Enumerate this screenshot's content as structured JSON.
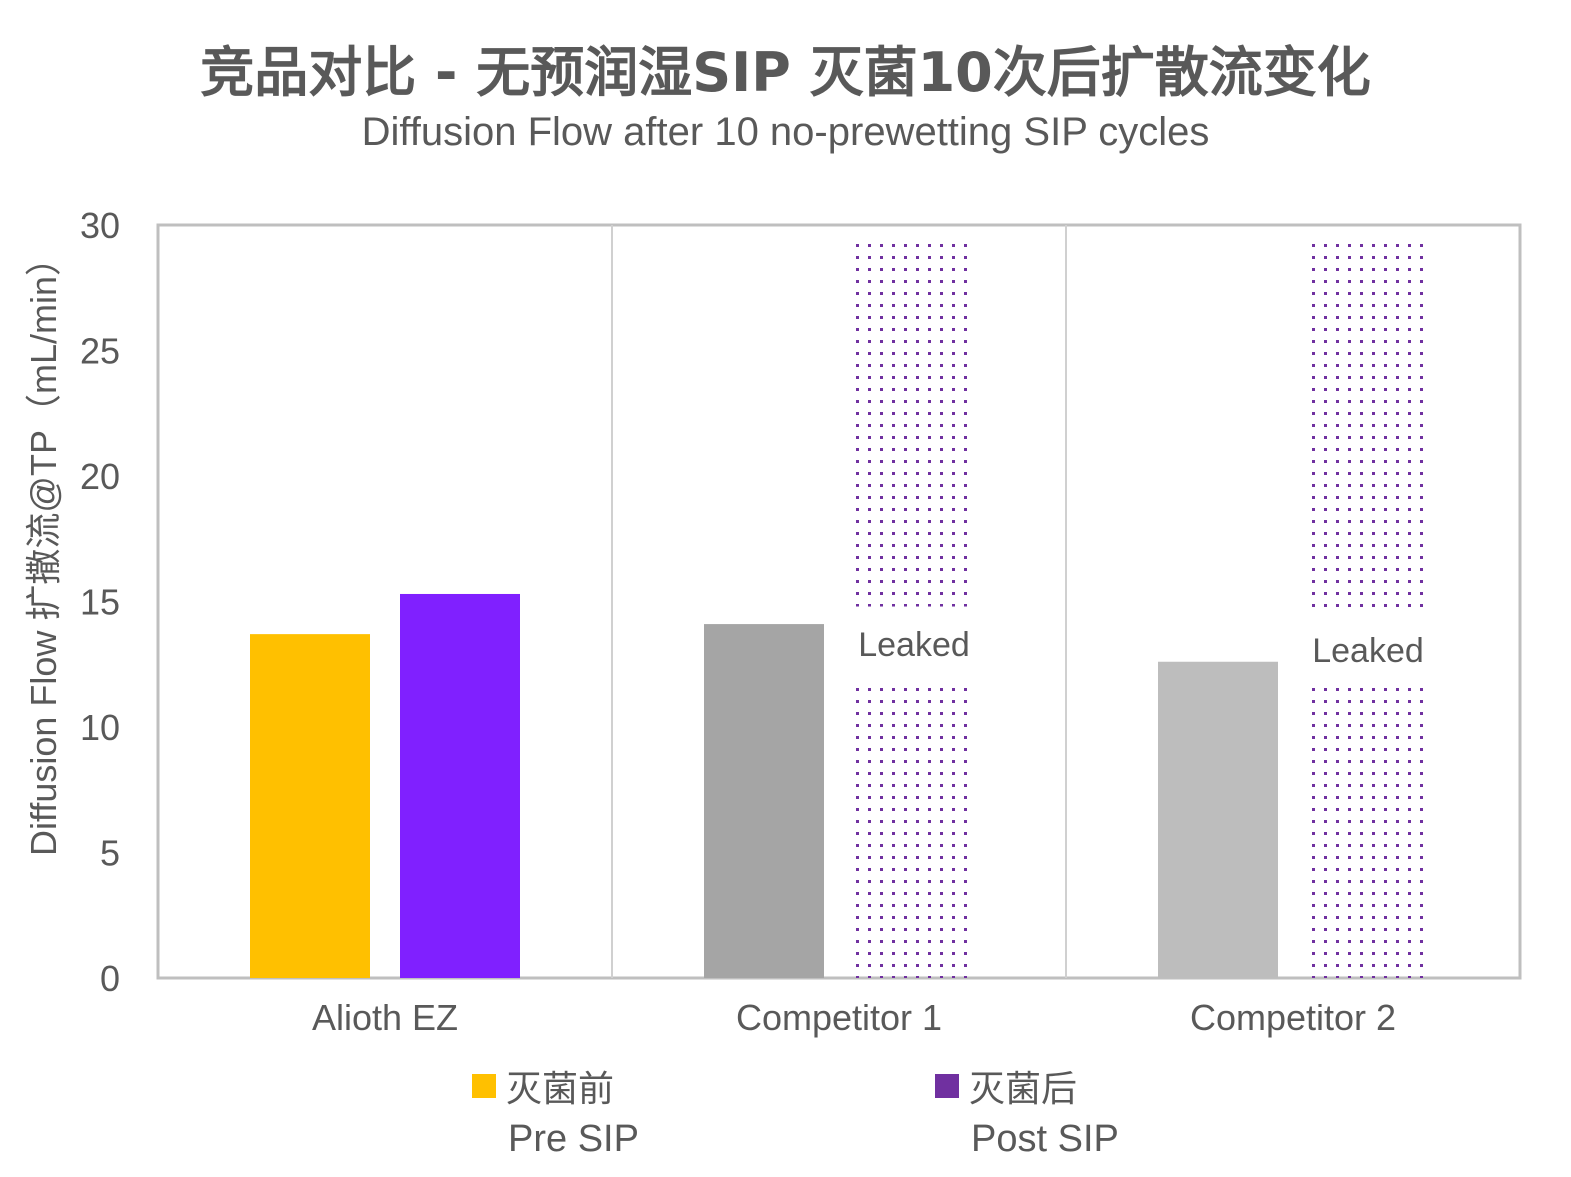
{
  "chart_data": {
    "type": "bar",
    "title": "竞品对比 - 无预润湿SIP 灭菌10次后扩散流变化",
    "subtitle": "Diffusion Flow after 10 no-prewetting SIP cycles",
    "ylabel": "Diffusion Flow 扩撒流@TP（mL/min）",
    "ylim": [
      0,
      30
    ],
    "yticks": [
      0,
      5,
      10,
      15,
      20,
      25,
      30
    ],
    "categories": [
      "Alioth EZ",
      "Competitor 1",
      "Competitor 2"
    ],
    "series": [
      {
        "name": "灭菌前 Pre SIP",
        "values": [
          13.7,
          14.1,
          12.6
        ],
        "colors": [
          "#FFC000",
          "#A5A5A5",
          "#BDBDBD"
        ]
      },
      {
        "name": "灭菌后 Post SIP",
        "values": [
          15.3,
          null,
          null
        ],
        "colors": [
          "#8020FF",
          "#7030A0",
          "#7030A0"
        ],
        "annotations": [
          "",
          "Leaked",
          "Leaked"
        ]
      }
    ],
    "grid": false,
    "legend_position": "bottom"
  },
  "legend": {
    "pre_cn": "灭菌前",
    "pre_en": "Pre SIP",
    "pre_color": "#FFC000",
    "post_cn": "灭菌后",
    "post_en": "Post SIP",
    "post_color": "#7030A0"
  }
}
